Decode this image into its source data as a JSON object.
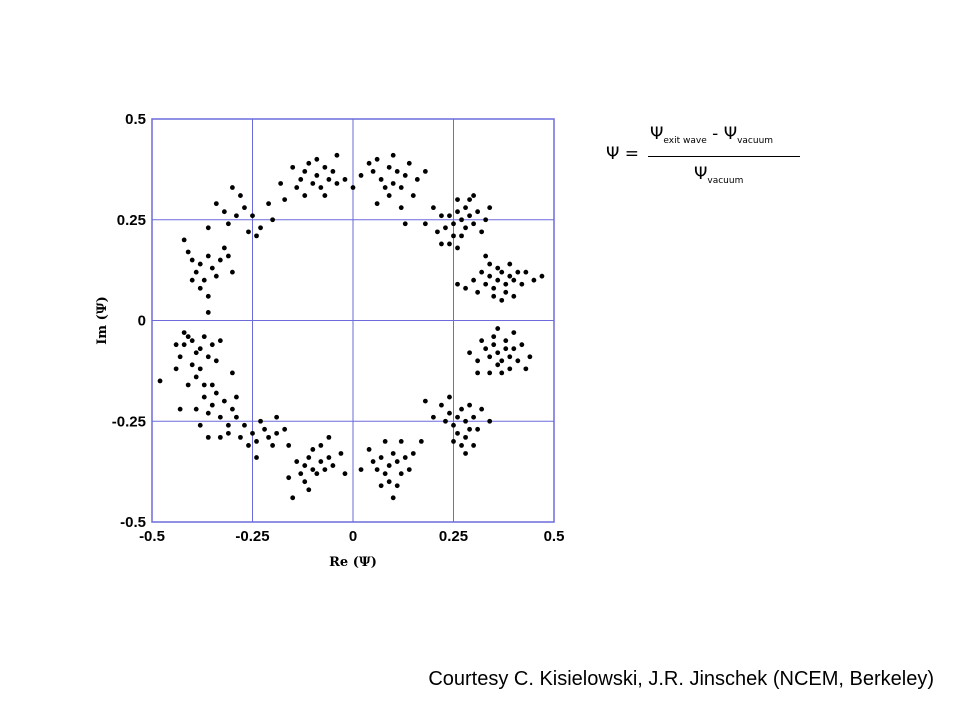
{
  "chart_data": {
    "type": "scatter",
    "xlabel": "Re (Ψ)",
    "ylabel": "Im (Ψ)",
    "xlim": [
      -0.5,
      0.5
    ],
    "ylim": [
      -0.5,
      0.5
    ],
    "xticks": [
      -0.5,
      -0.25,
      0,
      0.25,
      0.5
    ],
    "yticks": [
      -0.5,
      -0.25,
      0,
      0.25,
      0.5
    ],
    "xtick_labels": [
      "-0.5",
      "-0.25",
      "0",
      "0.25",
      "0.5"
    ],
    "ytick_labels": [
      "-0.5",
      "-0.25",
      "0",
      "0.25",
      "0.5"
    ],
    "grid": true,
    "grid_color": "#6b6bdc",
    "marker_color": "#000000",
    "clusters": [
      {
        "cx": 0.09,
        "cy": 0.36
      },
      {
        "cx": -0.09,
        "cy": 0.35
      },
      {
        "cx": -0.3,
        "cy": 0.27
      },
      {
        "cx": -0.38,
        "cy": 0.15
      },
      {
        "cx": -0.4,
        "cy": -0.06
      },
      {
        "cx": -0.34,
        "cy": -0.2
      },
      {
        "cx": -0.24,
        "cy": -0.28
      },
      {
        "cx": -0.11,
        "cy": -0.36
      },
      {
        "cx": 0.09,
        "cy": -0.35
      },
      {
        "cx": 0.26,
        "cy": -0.25
      },
      {
        "cx": 0.37,
        "cy": -0.08
      },
      {
        "cx": 0.37,
        "cy": 0.1
      },
      {
        "cx": 0.27,
        "cy": 0.25
      }
    ],
    "points": [
      [
        0.06,
        0.4
      ],
      [
        0.09,
        0.38
      ],
      [
        0.11,
        0.37
      ],
      [
        0.07,
        0.35
      ],
      [
        0.1,
        0.34
      ],
      [
        0.13,
        0.36
      ],
      [
        0.05,
        0.37
      ],
      [
        0.08,
        0.33
      ],
      [
        0.12,
        0.33
      ],
      [
        0.04,
        0.39
      ],
      [
        0.14,
        0.39
      ],
      [
        0.1,
        0.41
      ],
      [
        0.16,
        0.35
      ],
      [
        0.02,
        0.36
      ],
      [
        0.09,
        0.31
      ],
      [
        0.15,
        0.31
      ],
      [
        0.12,
        0.28
      ],
      [
        0.18,
        0.37
      ],
      [
        0.06,
        0.29
      ],
      [
        0.13,
        0.24
      ],
      [
        -0.12,
        0.37
      ],
      [
        -0.09,
        0.36
      ],
      [
        -0.07,
        0.38
      ],
      [
        -0.1,
        0.34
      ],
      [
        -0.06,
        0.35
      ],
      [
        -0.13,
        0.35
      ],
      [
        -0.08,
        0.33
      ],
      [
        -0.11,
        0.39
      ],
      [
        -0.05,
        0.37
      ],
      [
        -0.04,
        0.34
      ],
      [
        -0.15,
        0.38
      ],
      [
        -0.09,
        0.4
      ],
      [
        -0.14,
        0.33
      ],
      [
        -0.02,
        0.35
      ],
      [
        -0.07,
        0.31
      ],
      [
        -0.12,
        0.31
      ],
      [
        -0.18,
        0.34
      ],
      [
        -0.17,
        0.3
      ],
      [
        0.0,
        0.33
      ],
      [
        -0.04,
        0.41
      ],
      [
        -0.32,
        0.27
      ],
      [
        -0.29,
        0.26
      ],
      [
        -0.27,
        0.28
      ],
      [
        -0.31,
        0.24
      ],
      [
        -0.25,
        0.26
      ],
      [
        -0.34,
        0.29
      ],
      [
        -0.28,
        0.31
      ],
      [
        -0.23,
        0.23
      ],
      [
        -0.21,
        0.29
      ],
      [
        -0.26,
        0.22
      ],
      [
        -0.3,
        0.33
      ],
      [
        -0.2,
        0.25
      ],
      [
        -0.24,
        0.21
      ],
      [
        -0.36,
        0.23
      ],
      [
        -0.4,
        0.15
      ],
      [
        -0.38,
        0.14
      ],
      [
        -0.36,
        0.16
      ],
      [
        -0.39,
        0.12
      ],
      [
        -0.37,
        0.1
      ],
      [
        -0.41,
        0.17
      ],
      [
        -0.35,
        0.13
      ],
      [
        -0.33,
        0.15
      ],
      [
        -0.31,
        0.16
      ],
      [
        -0.38,
        0.08
      ],
      [
        -0.34,
        0.11
      ],
      [
        -0.42,
        0.2
      ],
      [
        -0.36,
        0.06
      ],
      [
        -0.3,
        0.12
      ],
      [
        -0.32,
        0.18
      ],
      [
        -0.4,
        0.1
      ],
      [
        -0.36,
        0.02
      ],
      [
        -0.42,
        -0.06
      ],
      [
        -0.4,
        -0.05
      ],
      [
        -0.38,
        -0.07
      ],
      [
        -0.41,
        -0.04
      ],
      [
        -0.39,
        -0.08
      ],
      [
        -0.43,
        -0.09
      ],
      [
        -0.37,
        -0.04
      ],
      [
        -0.36,
        -0.09
      ],
      [
        -0.4,
        -0.11
      ],
      [
        -0.35,
        -0.06
      ],
      [
        -0.42,
        -0.03
      ],
      [
        -0.38,
        -0.12
      ],
      [
        -0.44,
        -0.06
      ],
      [
        -0.34,
        -0.1
      ],
      [
        -0.39,
        -0.14
      ],
      [
        -0.33,
        -0.05
      ],
      [
        -0.41,
        -0.16
      ],
      [
        -0.37,
        -0.16
      ],
      [
        -0.44,
        -0.12
      ],
      [
        -0.48,
        -0.15
      ],
      [
        -0.34,
        -0.18
      ],
      [
        -0.35,
        -0.21
      ],
      [
        -0.32,
        -0.2
      ],
      [
        -0.36,
        -0.23
      ],
      [
        -0.33,
        -0.24
      ],
      [
        -0.37,
        -0.19
      ],
      [
        -0.3,
        -0.22
      ],
      [
        -0.38,
        -0.26
      ],
      [
        -0.31,
        -0.26
      ],
      [
        -0.35,
        -0.16
      ],
      [
        -0.29,
        -0.19
      ],
      [
        -0.39,
        -0.22
      ],
      [
        -0.33,
        -0.29
      ],
      [
        -0.43,
        -0.22
      ],
      [
        -0.3,
        -0.13
      ],
      [
        -0.36,
        -0.29
      ],
      [
        -0.25,
        -0.28
      ],
      [
        -0.22,
        -0.27
      ],
      [
        -0.24,
        -0.3
      ],
      [
        -0.27,
        -0.26
      ],
      [
        -0.21,
        -0.29
      ],
      [
        -0.28,
        -0.29
      ],
      [
        -0.23,
        -0.25
      ],
      [
        -0.19,
        -0.28
      ],
      [
        -0.26,
        -0.31
      ],
      [
        -0.2,
        -0.31
      ],
      [
        -0.17,
        -0.27
      ],
      [
        -0.29,
        -0.24
      ],
      [
        -0.24,
        -0.34
      ],
      [
        -0.16,
        -0.31
      ],
      [
        -0.31,
        -0.28
      ],
      [
        -0.19,
        -0.24
      ],
      [
        -0.12,
        -0.36
      ],
      [
        -0.1,
        -0.37
      ],
      [
        -0.08,
        -0.35
      ],
      [
        -0.11,
        -0.34
      ],
      [
        -0.09,
        -0.38
      ],
      [
        -0.13,
        -0.38
      ],
      [
        -0.07,
        -0.37
      ],
      [
        -0.06,
        -0.34
      ],
      [
        -0.12,
        -0.4
      ],
      [
        -0.05,
        -0.36
      ],
      [
        -0.14,
        -0.35
      ],
      [
        -0.1,
        -0.32
      ],
      [
        -0.03,
        -0.33
      ],
      [
        -0.08,
        -0.31
      ],
      [
        -0.15,
        -0.44
      ],
      [
        -0.11,
        -0.42
      ],
      [
        -0.02,
        -0.38
      ],
      [
        -0.06,
        -0.29
      ],
      [
        -0.16,
        -0.39
      ],
      [
        0.07,
        -0.34
      ],
      [
        0.09,
        -0.36
      ],
      [
        0.11,
        -0.35
      ],
      [
        0.08,
        -0.38
      ],
      [
        0.1,
        -0.33
      ],
      [
        0.06,
        -0.37
      ],
      [
        0.12,
        -0.38
      ],
      [
        0.05,
        -0.35
      ],
      [
        0.13,
        -0.34
      ],
      [
        0.09,
        -0.4
      ],
      [
        0.11,
        -0.41
      ],
      [
        0.07,
        -0.41
      ],
      [
        0.14,
        -0.37
      ],
      [
        0.04,
        -0.32
      ],
      [
        0.12,
        -0.3
      ],
      [
        0.08,
        -0.3
      ],
      [
        0.15,
        -0.33
      ],
      [
        0.1,
        -0.44
      ],
      [
        0.02,
        -0.37
      ],
      [
        0.17,
        -0.3
      ],
      [
        0.26,
        -0.24
      ],
      [
        0.28,
        -0.25
      ],
      [
        0.25,
        -0.26
      ],
      [
        0.27,
        -0.22
      ],
      [
        0.29,
        -0.27
      ],
      [
        0.24,
        -0.23
      ],
      [
        0.28,
        -0.29
      ],
      [
        0.3,
        -0.24
      ],
      [
        0.26,
        -0.28
      ],
      [
        0.23,
        -0.25
      ],
      [
        0.29,
        -0.21
      ],
      [
        0.31,
        -0.27
      ],
      [
        0.27,
        -0.31
      ],
      [
        0.25,
        -0.3
      ],
      [
        0.3,
        -0.31
      ],
      [
        0.22,
        -0.21
      ],
      [
        0.32,
        -0.22
      ],
      [
        0.2,
        -0.24
      ],
      [
        0.28,
        -0.33
      ],
      [
        0.24,
        -0.19
      ],
      [
        0.34,
        -0.25
      ],
      [
        0.18,
        -0.2
      ],
      [
        0.36,
        -0.08
      ],
      [
        0.38,
        -0.07
      ],
      [
        0.37,
        -0.1
      ],
      [
        0.35,
        -0.06
      ],
      [
        0.39,
        -0.09
      ],
      [
        0.34,
        -0.09
      ],
      [
        0.4,
        -0.07
      ],
      [
        0.36,
        -0.11
      ],
      [
        0.38,
        -0.05
      ],
      [
        0.33,
        -0.07
      ],
      [
        0.41,
        -0.1
      ],
      [
        0.35,
        -0.04
      ],
      [
        0.39,
        -0.12
      ],
      [
        0.32,
        -0.05
      ],
      [
        0.37,
        -0.13
      ],
      [
        0.42,
        -0.06
      ],
      [
        0.31,
        -0.1
      ],
      [
        0.43,
        -0.12
      ],
      [
        0.34,
        -0.13
      ],
      [
        0.4,
        -0.03
      ],
      [
        0.29,
        -0.08
      ],
      [
        0.36,
        -0.02
      ],
      [
        0.44,
        -0.09
      ],
      [
        0.31,
        -0.13
      ],
      [
        0.36,
        0.1
      ],
      [
        0.38,
        0.09
      ],
      [
        0.35,
        0.08
      ],
      [
        0.37,
        0.12
      ],
      [
        0.39,
        0.11
      ],
      [
        0.34,
        0.11
      ],
      [
        0.4,
        0.1
      ],
      [
        0.36,
        0.13
      ],
      [
        0.38,
        0.07
      ],
      [
        0.33,
        0.09
      ],
      [
        0.41,
        0.12
      ],
      [
        0.35,
        0.06
      ],
      [
        0.39,
        0.14
      ],
      [
        0.32,
        0.12
      ],
      [
        0.37,
        0.05
      ],
      [
        0.42,
        0.09
      ],
      [
        0.31,
        0.07
      ],
      [
        0.43,
        0.12
      ],
      [
        0.34,
        0.14
      ],
      [
        0.3,
        0.1
      ],
      [
        0.45,
        0.1
      ],
      [
        0.28,
        0.08
      ],
      [
        0.4,
        0.06
      ],
      [
        0.47,
        0.11
      ],
      [
        0.33,
        0.16
      ],
      [
        0.26,
        0.09
      ],
      [
        0.27,
        0.25
      ],
      [
        0.25,
        0.24
      ],
      [
        0.28,
        0.23
      ],
      [
        0.26,
        0.27
      ],
      [
        0.29,
        0.26
      ],
      [
        0.24,
        0.26
      ],
      [
        0.3,
        0.24
      ],
      [
        0.27,
        0.21
      ],
      [
        0.28,
        0.28
      ],
      [
        0.23,
        0.23
      ],
      [
        0.31,
        0.27
      ],
      [
        0.25,
        0.21
      ],
      [
        0.29,
        0.3
      ],
      [
        0.22,
        0.26
      ],
      [
        0.32,
        0.22
      ],
      [
        0.26,
        0.3
      ],
      [
        0.21,
        0.22
      ],
      [
        0.33,
        0.25
      ],
      [
        0.24,
        0.19
      ],
      [
        0.3,
        0.31
      ],
      [
        0.2,
        0.28
      ],
      [
        0.34,
        0.28
      ],
      [
        0.22,
        0.19
      ],
      [
        0.18,
        0.24
      ],
      [
        0.26,
        0.18
      ]
    ]
  },
  "formula": {
    "lhs": "Ψ =",
    "numerator_psi_1": "Ψ",
    "numerator_sub_1": "exit wave",
    "numerator_op": " - ",
    "numerator_psi_2": "Ψ",
    "numerator_sub_2": "vacuum",
    "denominator_psi": "Ψ",
    "denominator_sub": "vacuum"
  },
  "credit": "Courtesy C. Kisielowski, J.R. Jinschek (NCEM, Berkeley)"
}
